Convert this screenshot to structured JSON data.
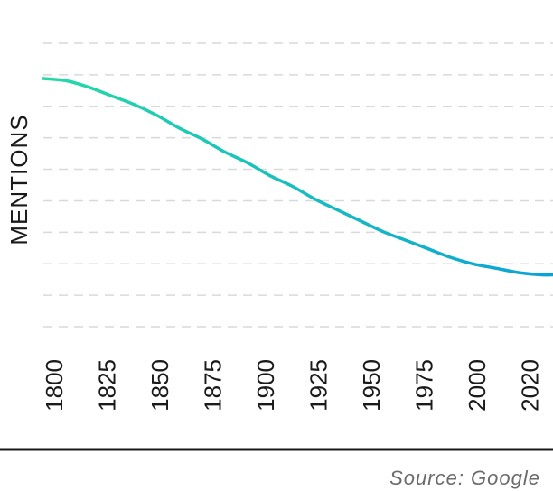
{
  "chart_data": {
    "type": "line",
    "ylabel": "MENTIONS",
    "xlabel": "",
    "x_ticks": [
      "1800",
      "1825",
      "1850",
      "1875",
      "1900",
      "1925",
      "1950",
      "1975",
      "2000",
      "2020"
    ],
    "y_ticks": [],
    "xlim": [
      1800,
      2025
    ],
    "ylim": [
      0,
      1
    ],
    "grid": "horizontal-dashed",
    "series": [
      {
        "color": "#25d9a8",
        "color_end": "#0aa2d6",
        "x": [
          1800,
          1810,
          1820,
          1830,
          1840,
          1850,
          1860,
          1870,
          1880,
          1890,
          1900,
          1910,
          1920,
          1930,
          1940,
          1950,
          1960,
          1970,
          1980,
          1990,
          2000,
          2010,
          2020,
          2025
        ],
        "y": [
          1.0,
          0.99,
          0.96,
          0.92,
          0.88,
          0.83,
          0.77,
          0.72,
          0.66,
          0.61,
          0.55,
          0.5,
          0.44,
          0.39,
          0.34,
          0.29,
          0.25,
          0.21,
          0.17,
          0.14,
          0.12,
          0.1,
          0.09,
          0.09
        ]
      }
    ]
  },
  "source": "Source: Google",
  "colors": {
    "grid": "#d9d9d9",
    "baseline": "#1a1a1a",
    "text": "#1a1a1a",
    "source": "#6b6b6b"
  }
}
